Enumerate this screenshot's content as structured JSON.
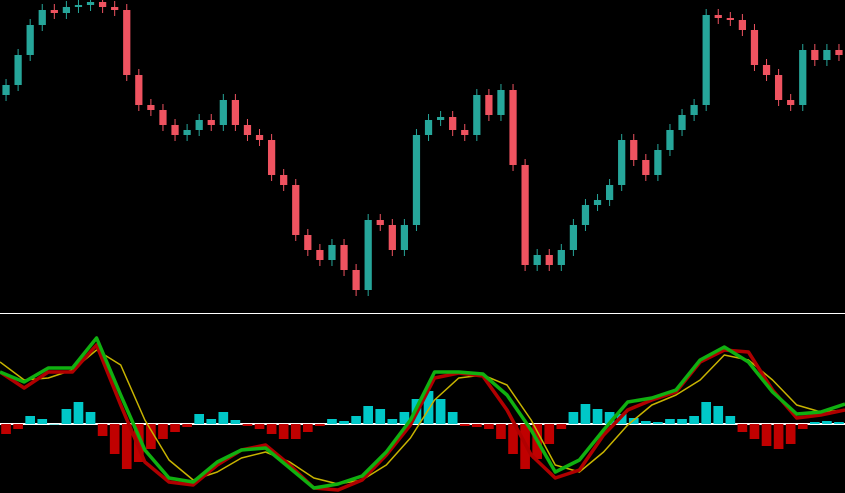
{
  "chart_data": [
    {
      "type": "candlestick",
      "up_color": "#26a69a",
      "down_color": "#ef5360",
      "open": [
        210,
        220,
        250,
        280,
        295,
        292,
        298,
        300,
        303,
        298,
        295,
        230,
        200,
        195,
        180,
        170,
        175,
        185,
        180,
        205,
        180,
        170,
        165,
        130,
        120,
        70,
        55,
        45,
        60,
        35,
        15,
        85,
        80,
        55,
        80,
        170,
        185,
        188,
        175,
        170,
        210,
        190,
        215,
        140,
        40,
        50,
        40,
        55,
        80,
        100,
        105,
        120,
        165,
        145,
        130,
        155,
        175,
        190,
        200,
        290,
        287,
        285,
        275,
        240,
        230,
        205,
        200,
        255,
        245,
        255
      ],
      "high": [
        226,
        256,
        286,
        301,
        301,
        304,
        306,
        309,
        309,
        304,
        301,
        236,
        206,
        201,
        186,
        181,
        191,
        191,
        211,
        211,
        186,
        176,
        171,
        136,
        126,
        76,
        61,
        66,
        66,
        41,
        91,
        91,
        86,
        86,
        176,
        191,
        194,
        194,
        181,
        216,
        216,
        221,
        221,
        146,
        56,
        56,
        61,
        86,
        106,
        111,
        126,
        171,
        171,
        151,
        161,
        181,
        196,
        206,
        296,
        296,
        293,
        291,
        281,
        246,
        236,
        211,
        261,
        261,
        261,
        261
      ],
      "low": [
        204,
        214,
        244,
        274,
        286,
        286,
        292,
        294,
        292,
        289,
        224,
        194,
        189,
        174,
        164,
        164,
        169,
        174,
        174,
        174,
        164,
        159,
        124,
        114,
        64,
        49,
        39,
        39,
        29,
        9,
        9,
        74,
        49,
        49,
        74,
        164,
        179,
        169,
        164,
        164,
        184,
        184,
        134,
        34,
        34,
        34,
        34,
        49,
        74,
        94,
        99,
        114,
        139,
        124,
        124,
        149,
        169,
        184,
        194,
        281,
        279,
        269,
        234,
        224,
        199,
        194,
        194,
        239,
        239,
        244
      ],
      "close": [
        220,
        250,
        280,
        295,
        292,
        298,
        300,
        303,
        298,
        295,
        230,
        200,
        195,
        180,
        170,
        175,
        185,
        180,
        205,
        180,
        170,
        165,
        130,
        120,
        70,
        55,
        45,
        60,
        35,
        15,
        85,
        80,
        55,
        80,
        170,
        185,
        188,
        175,
        170,
        210,
        190,
        215,
        140,
        40,
        50,
        40,
        55,
        80,
        100,
        105,
        120,
        165,
        145,
        130,
        155,
        175,
        190,
        200,
        290,
        287,
        285,
        275,
        240,
        230,
        205,
        200,
        255,
        245,
        255,
        250
      ]
    },
    {
      "type": "oscillator",
      "histogram": {
        "up_color": "#00c8c8",
        "down_color": "#c00000",
        "values": [
          -10,
          -5,
          8,
          5,
          0,
          15,
          22,
          12,
          -12,
          -30,
          -45,
          -38,
          -25,
          -15,
          -8,
          -3,
          10,
          5,
          12,
          4,
          -2,
          -5,
          -10,
          -15,
          -15,
          -8,
          -2,
          5,
          3,
          8,
          18,
          15,
          5,
          12,
          25,
          33,
          25,
          12,
          -2,
          -3,
          -5,
          -15,
          -30,
          -45,
          -35,
          -20,
          -5,
          12,
          20,
          15,
          12,
          10,
          6,
          3,
          2,
          5,
          5,
          8,
          22,
          18,
          8,
          -8,
          -15,
          -22,
          -25,
          -20,
          -5,
          2,
          3,
          2
        ]
      },
      "series": [
        {
          "color": "#c8b400",
          "values": [
            62,
            44,
            46,
            54,
            74,
            59,
            4,
            -36,
            -56,
            -48,
            -34,
            -28,
            -38,
            -54,
            -60,
            -56,
            -41,
            -14,
            24,
            46,
            49,
            39,
            4,
            -41,
            -48,
            -28,
            -1,
            19,
            29,
            44,
            69,
            64,
            44,
            19,
            12,
            14
          ]
        },
        {
          "color": "#b00000",
          "values": [
            52,
            36,
            52,
            52,
            79,
            19,
            -38,
            -58,
            -61,
            -41,
            -26,
            -21,
            -41,
            -64,
            -66,
            -56,
            -31,
            -1,
            46,
            51,
            48,
            14,
            -31,
            -54,
            -46,
            -11,
            14,
            24,
            32,
            62,
            74,
            72,
            34,
            6,
            9,
            14
          ]
        },
        {
          "color": "#10b010",
          "values": [
            52,
            42,
            56,
            56,
            86,
            29,
            -26,
            -54,
            -58,
            -38,
            -26,
            -24,
            -44,
            -64,
            -60,
            -52,
            -28,
            4,
            52,
            52,
            50,
            29,
            -6,
            -48,
            -36,
            -6,
            22,
            26,
            34,
            64,
            77,
            62,
            32,
            10,
            12,
            20
          ]
        }
      ]
    }
  ]
}
